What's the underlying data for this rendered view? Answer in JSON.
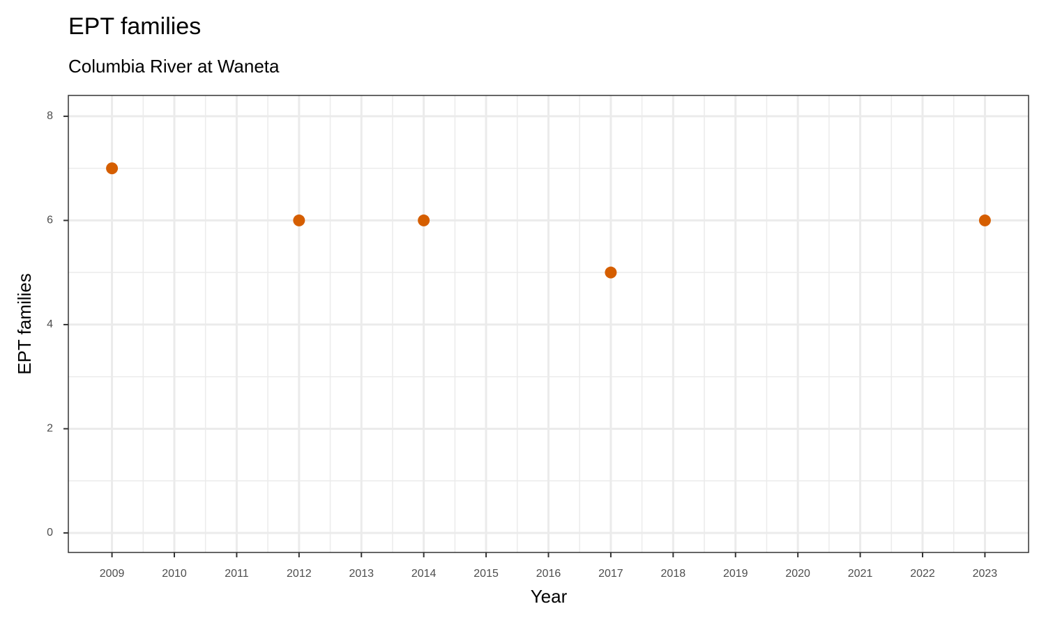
{
  "chart_data": {
    "type": "scatter",
    "title": "EPT families",
    "subtitle": "Columbia River at Waneta",
    "x_label": "Year",
    "y_label": "EPT families",
    "x": [
      2009,
      2012,
      2014,
      2017,
      2023
    ],
    "values": [
      7,
      6,
      6,
      5,
      6
    ],
    "color": "#d55e00",
    "xlim": [
      2008.3,
      2023.7
    ],
    "ylim": [
      -0.375,
      8.4
    ],
    "xticks": [
      2009,
      2010,
      2011,
      2012,
      2013,
      2014,
      2015,
      2016,
      2017,
      2018,
      2019,
      2020,
      2021,
      2022,
      2023
    ],
    "yticks": [
      0,
      2,
      4,
      6,
      8
    ],
    "grid": true
  }
}
